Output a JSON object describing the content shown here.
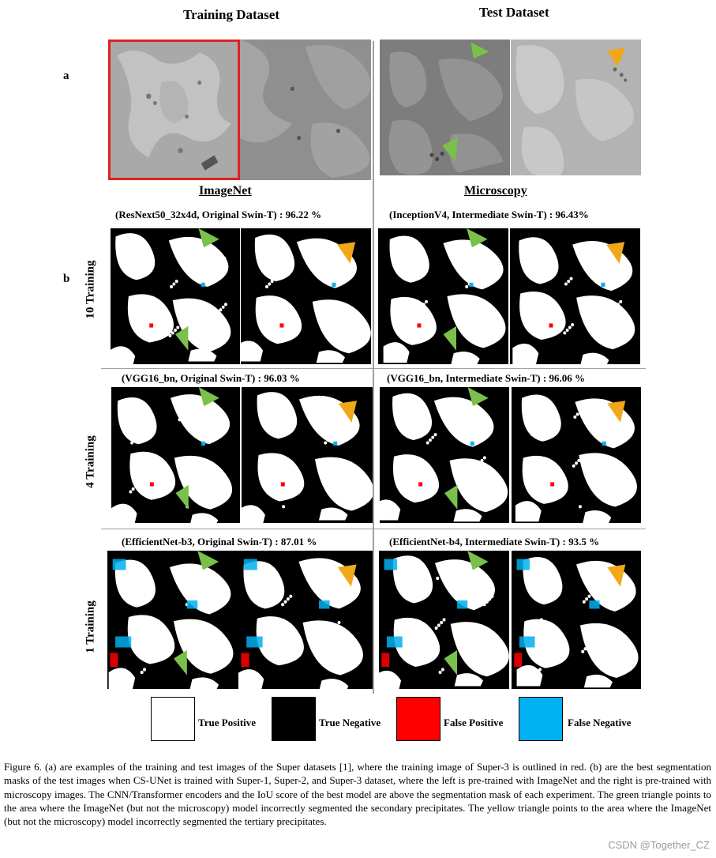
{
  "headers": {
    "training": "Training Dataset",
    "test": "Test Dataset"
  },
  "panel_labels": {
    "a": "a",
    "b": "b"
  },
  "subheaders": {
    "imagenet": "ImageNet",
    "microscopy": "Microscopy"
  },
  "rows": [
    {
      "label": "10 Training",
      "left_score": "(ResNext50_32x4d, Original Swin-T) : 96.22 %",
      "right_score": "(InceptionV4, Intermediate Swin-T) : 96.43%"
    },
    {
      "label": "4 Training",
      "left_score": "(VGG16_bn, Original Swin-T) : 96.03 %",
      "right_score": "(VGG16_bn, Intermediate Swin-T) : 96.06 %"
    },
    {
      "label": "1 Training",
      "left_score": "(EfficientNet-b3, Original Swin-T) : 87.01 %",
      "right_score": "(EfficientNet-b4, Intermediate Swin-T) : 93.5 %"
    }
  ],
  "legend": [
    {
      "label": "True Positive",
      "color": "#ffffff"
    },
    {
      "label": "True Negative",
      "color": "#000000"
    },
    {
      "label": "False Positive",
      "color": "#ff0000"
    },
    {
      "label": "False Negative",
      "color": "#00b0f0"
    }
  ],
  "colors": {
    "outline": "#e02020",
    "green_triangle": "#7ac04a",
    "yellow_triangle": "#f0a818"
  },
  "caption": "Figure 6. (a) are examples of the training and test images of the Super datasets [1], where the training image of Super-3 is outlined in red. (b) are the best segmentation masks of the test images when CS-UNet is trained with Super-1, Super-2, and Super-3 dataset, where the left is pre-trained with ImageNet and the right is pre-trained with microscopy images. The CNN/Transformer encoders and the IoU score of the best model are above the segmentation mask of each experiment. The green triangle points to the area where the ImageNet (but not the microscopy) model incorrectly segmented the secondary precipitates. The yellow triangle points to the area where the ImageNet (but not the microscopy) model incorrectly segmented the tertiary precipitates.",
  "watermark": "CSDN @Together_CZ"
}
